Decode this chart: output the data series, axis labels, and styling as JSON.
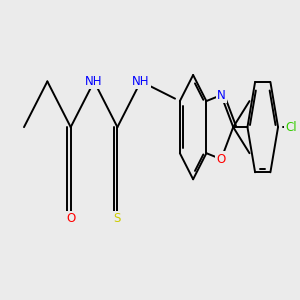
{
  "background_color": "#ebebeb",
  "label_colors": {
    "O": "#ff0000",
    "N": "#0000ff",
    "S": "#cccc00",
    "Cl": "#33cc00",
    "H": "#008080",
    "C": "#000000"
  },
  "bond_lw": 1.4,
  "label_fs": 8.5,
  "figsize": [
    3.0,
    3.0
  ],
  "dpi": 100
}
